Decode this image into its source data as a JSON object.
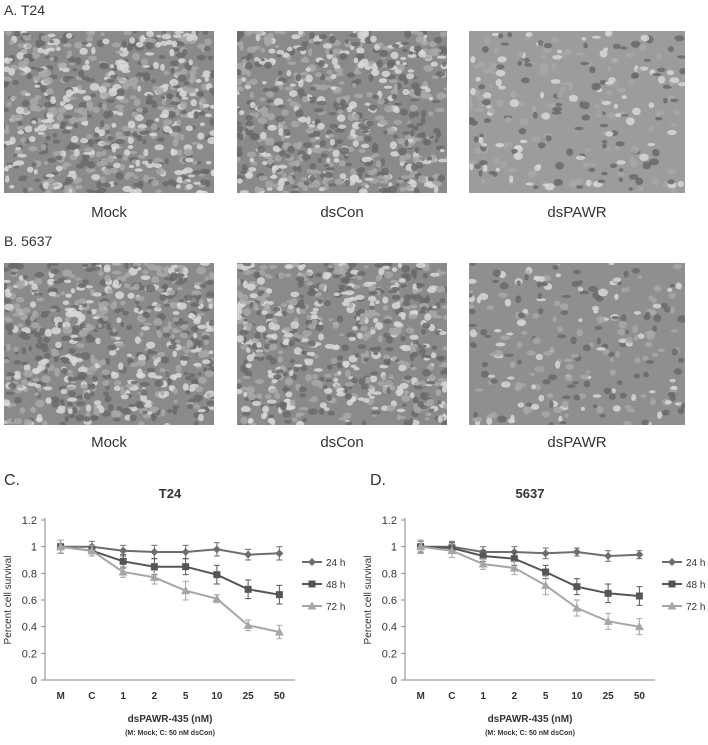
{
  "panels": {
    "A": {
      "label": "A. T24",
      "captions": [
        "Mock",
        "dsCon",
        "dsPAWR"
      ]
    },
    "B": {
      "label": "B. 5637",
      "captions": [
        "Mock",
        "dsCon",
        "dsPAWR"
      ]
    },
    "C": {
      "label": "C."
    },
    "D": {
      "label": "D."
    }
  },
  "chart_data": [
    {
      "type": "line",
      "title": "T24",
      "xlabel": "dsPAWR-435 (nM)",
      "xnote": "(M: Mock; C: 50 nM dsCon)",
      "ylabel": "Percent cell survival",
      "categories": [
        "M",
        "C",
        "1",
        "2",
        "5",
        "10",
        "25",
        "50"
      ],
      "ylim": [
        0,
        1.2
      ],
      "yticks": [
        "0",
        "0.2",
        "0.4",
        "0.6",
        "0.8",
        "1",
        "1.2"
      ],
      "legend_position": "right",
      "series": [
        {
          "name": "24 h",
          "marker": "diamond",
          "color": "#6e6e6e",
          "values": [
            1.0,
            1.0,
            0.97,
            0.96,
            0.96,
            0.98,
            0.94,
            0.95
          ],
          "errors": [
            0.05,
            0.04,
            0.04,
            0.05,
            0.05,
            0.05,
            0.04,
            0.05
          ]
        },
        {
          "name": "48 h",
          "marker": "square",
          "color": "#555555",
          "values": [
            1.0,
            0.97,
            0.89,
            0.85,
            0.85,
            0.79,
            0.68,
            0.64
          ],
          "errors": [
            0.05,
            0.04,
            0.05,
            0.06,
            0.06,
            0.07,
            0.07,
            0.07
          ]
        },
        {
          "name": "72 h",
          "marker": "triangle",
          "color": "#a6a6a6",
          "values": [
            1.0,
            0.97,
            0.81,
            0.77,
            0.67,
            0.61,
            0.41,
            0.36
          ],
          "errors": [
            0.05,
            0.04,
            0.04,
            0.05,
            0.07,
            0.03,
            0.04,
            0.05
          ]
        }
      ]
    },
    {
      "type": "line",
      "title": "5637",
      "xlabel": "dsPAWR-435 (nM)",
      "xnote": "(M: Mock; C: 50 nM dsCon)",
      "ylabel": "Percent cell survival",
      "categories": [
        "M",
        "C",
        "1",
        "2",
        "5",
        "10",
        "25",
        "50"
      ],
      "ylim": [
        0,
        1.2
      ],
      "yticks": [
        "0",
        "0.2",
        "0.4",
        "0.6",
        "0.8",
        "1",
        "1.2"
      ],
      "legend_position": "right",
      "series": [
        {
          "name": "24 h",
          "marker": "diamond",
          "color": "#6e6e6e",
          "values": [
            1.0,
            1.0,
            0.96,
            0.96,
            0.95,
            0.96,
            0.93,
            0.94
          ],
          "errors": [
            0.04,
            0.04,
            0.04,
            0.04,
            0.04,
            0.03,
            0.04,
            0.03
          ]
        },
        {
          "name": "48 h",
          "marker": "square",
          "color": "#555555",
          "values": [
            1.0,
            0.99,
            0.93,
            0.91,
            0.81,
            0.7,
            0.65,
            0.63
          ],
          "errors": [
            0.05,
            0.04,
            0.04,
            0.05,
            0.05,
            0.06,
            0.07,
            0.07
          ]
        },
        {
          "name": "72 h",
          "marker": "triangle",
          "color": "#a6a6a6",
          "values": [
            1.0,
            0.97,
            0.87,
            0.84,
            0.71,
            0.54,
            0.44,
            0.4
          ],
          "errors": [
            0.05,
            0.05,
            0.04,
            0.05,
            0.07,
            0.06,
            0.06,
            0.06
          ]
        }
      ]
    }
  ]
}
